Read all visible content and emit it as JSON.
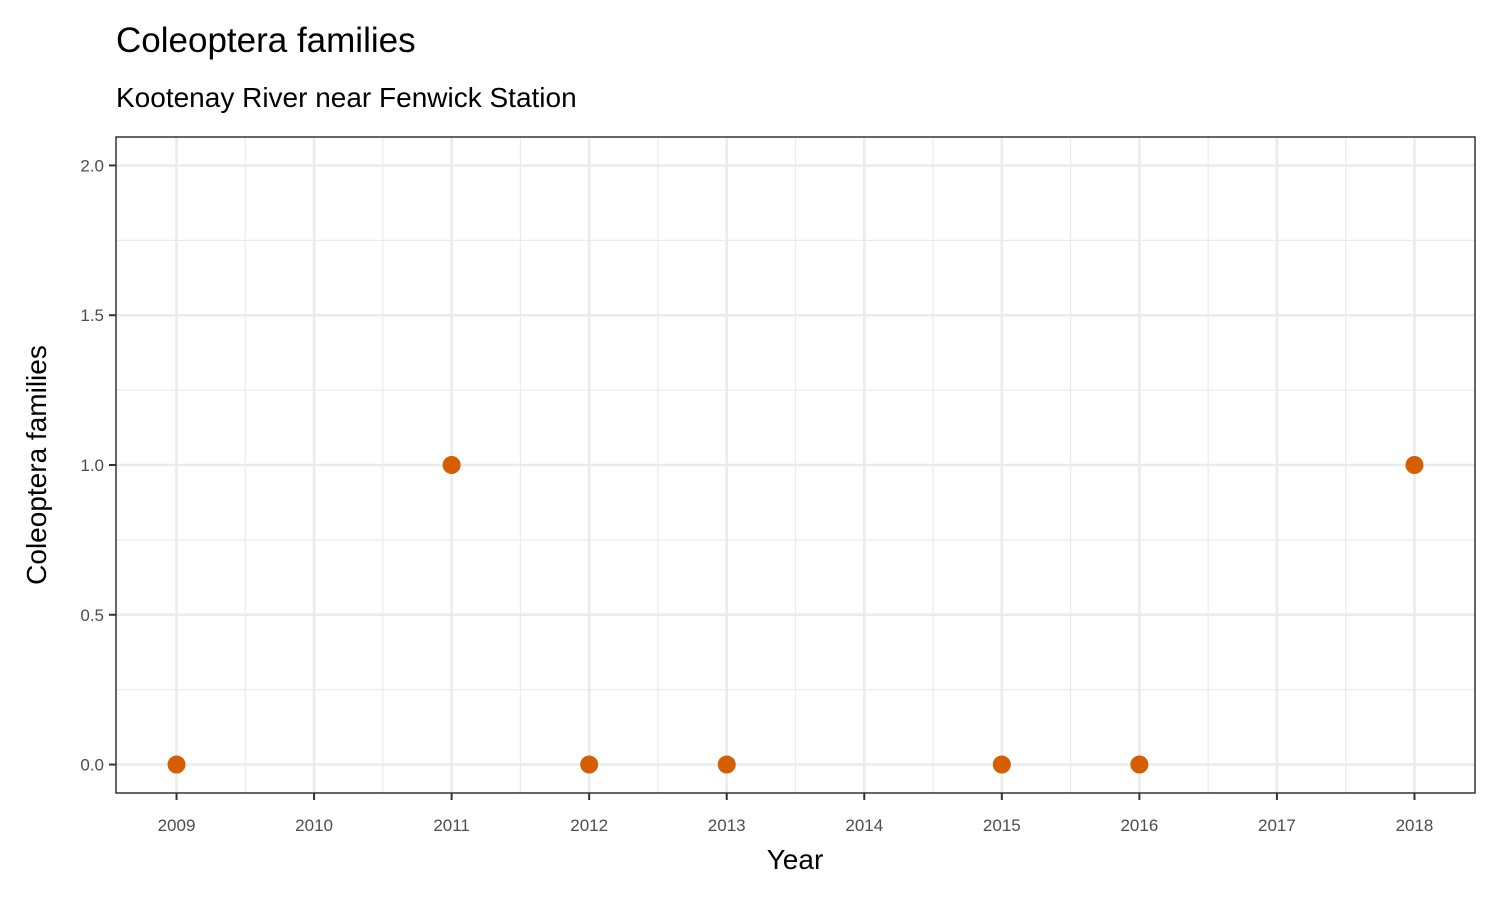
{
  "chart_data": {
    "type": "scatter",
    "title": "Coleoptera families",
    "subtitle": "Kootenay River near Fenwick Station",
    "xlabel": "Year",
    "ylabel": "Coleoptera families",
    "x": [
      2009,
      2011,
      2012,
      2013,
      2015,
      2016,
      2018
    ],
    "y": [
      0,
      1,
      0,
      0,
      0,
      0,
      1
    ],
    "xlim": [
      2008.56,
      2018.44
    ],
    "ylim": [
      -0.095,
      2.095
    ],
    "xticks": [
      "2009",
      "2010",
      "2011",
      "2012",
      "2013",
      "2014",
      "2015",
      "2016",
      "2017",
      "2018"
    ],
    "yticks": [
      "0.0",
      "0.5",
      "1.0",
      "1.5",
      "2.0"
    ],
    "grid": true,
    "point_color": "#D55E00"
  }
}
